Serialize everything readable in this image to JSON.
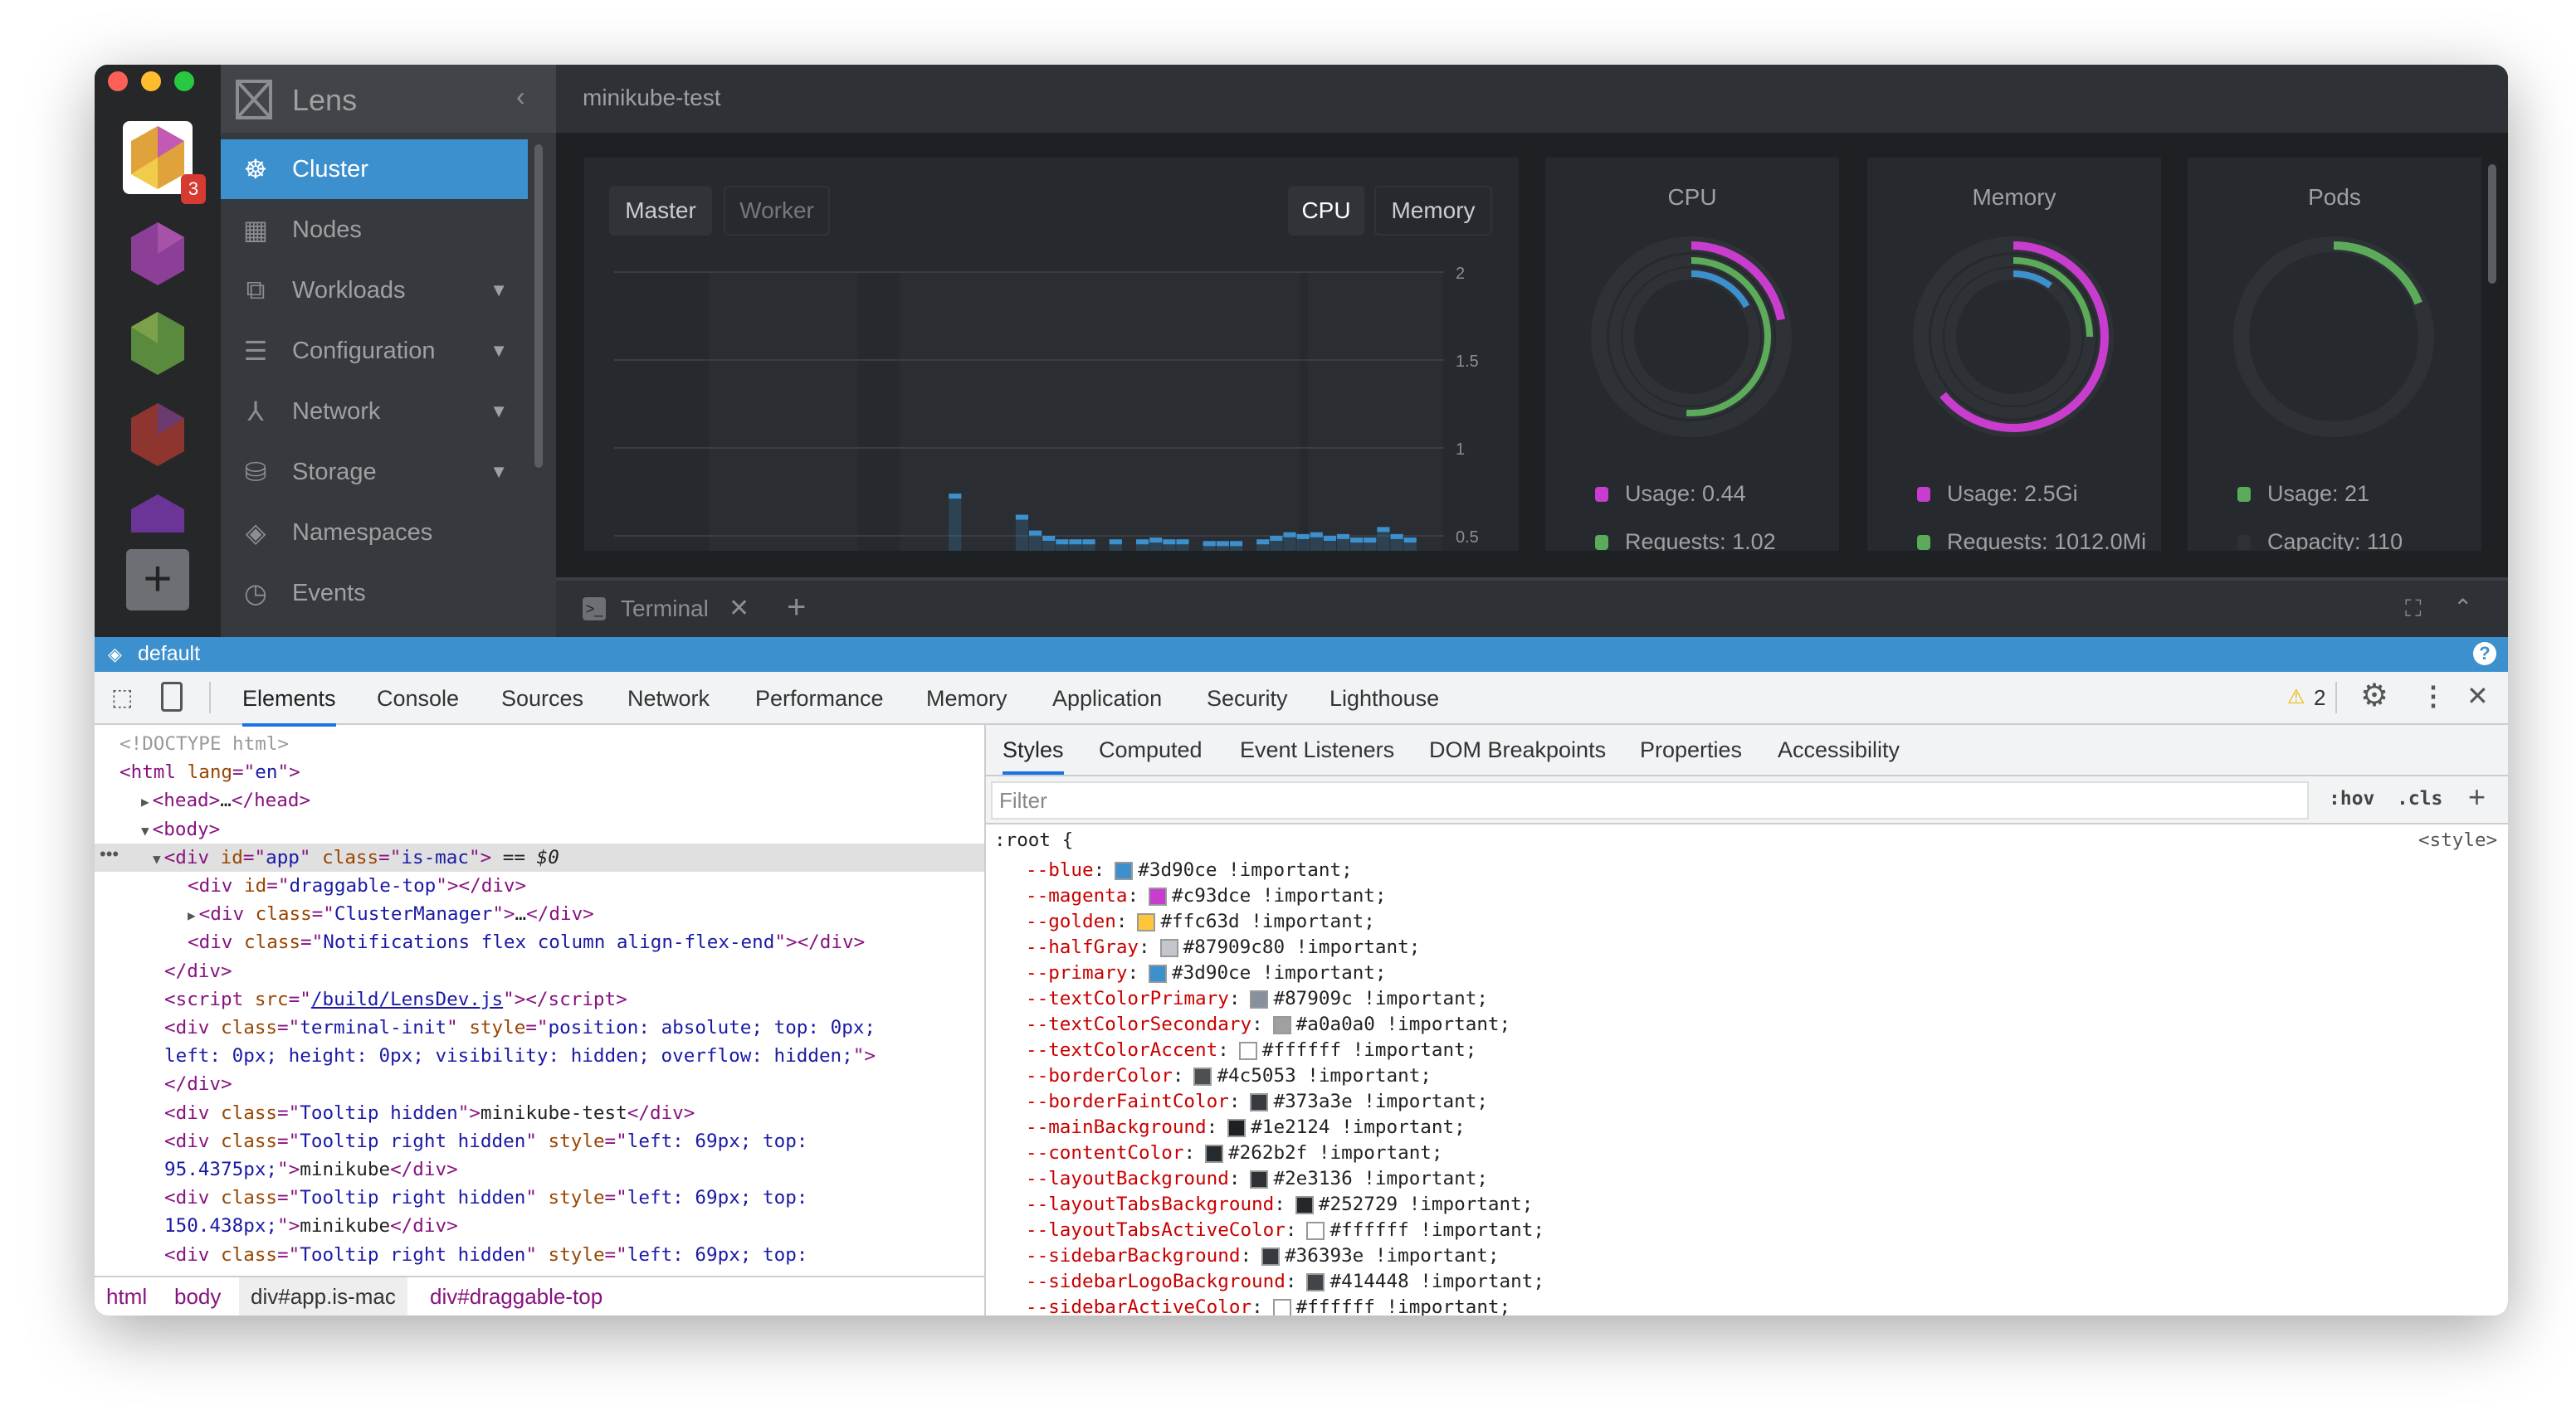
{
  "app": {
    "name": "Lens",
    "cluster_title": "minikube-test",
    "badge_count": "3"
  },
  "sidebar": {
    "items": [
      {
        "label": "Cluster",
        "icon": "helm-wheel-icon",
        "active": true,
        "expandable": false
      },
      {
        "label": "Nodes",
        "icon": "nodes-icon",
        "expandable": false
      },
      {
        "label": "Workloads",
        "icon": "workloads-icon",
        "expandable": true
      },
      {
        "label": "Configuration",
        "icon": "list-icon",
        "expandable": true
      },
      {
        "label": "Network",
        "icon": "network-icon",
        "expandable": true
      },
      {
        "label": "Storage",
        "icon": "database-icon",
        "expandable": true
      },
      {
        "label": "Namespaces",
        "icon": "layers-icon",
        "expandable": false
      },
      {
        "label": "Events",
        "icon": "clock-icon",
        "expandable": false
      }
    ]
  },
  "dashboard": {
    "node_tabs": [
      "Master",
      "Worker"
    ],
    "node_tab_active": "Master",
    "metric_tabs": [
      "CPU",
      "Memory"
    ],
    "metric_tab_active": "CPU",
    "chart_data": {
      "type": "bar",
      "ylim": [
        0,
        2
      ],
      "y_ticks": [
        "2",
        "1.5",
        "1",
        "0.5"
      ],
      "y_tick_values": [
        2,
        1.5,
        1,
        0.5
      ],
      "grid": true,
      "color": "#3d90ce",
      "values": [
        null,
        null,
        null,
        null,
        null,
        null,
        null,
        null,
        null,
        null,
        null,
        null,
        null,
        null,
        null,
        null,
        null,
        null,
        null,
        null,
        null,
        null,
        null,
        null,
        null,
        0.74,
        null,
        null,
        null,
        null,
        0.62,
        0.53,
        0.5,
        0.48,
        0.48,
        0.48,
        null,
        0.48,
        null,
        0.48,
        0.49,
        0.48,
        0.48,
        null,
        0.47,
        0.47,
        0.47,
        null,
        0.48,
        0.5,
        0.52,
        0.51,
        0.52,
        0.5,
        0.51,
        0.49,
        0.49,
        0.55,
        0.51,
        0.49,
        null,
        null
      ]
    },
    "rings": [
      {
        "title": "CPU",
        "arcs": [
          {
            "fraction": 0.22,
            "color": "#c93dce"
          },
          {
            "fraction": 0.51,
            "color": "#5cab5a"
          },
          {
            "fraction": 0.17,
            "color": "#3d90ce"
          }
        ],
        "legend": [
          {
            "label": "Usage: 0.44",
            "color": "#c93dce"
          },
          {
            "label": "Requests: 1.02",
            "color": "#5cab5a"
          }
        ]
      },
      {
        "title": "Memory",
        "arcs": [
          {
            "fraction": 0.64,
            "color": "#c93dce"
          },
          {
            "fraction": 0.25,
            "color": "#5cab5a"
          },
          {
            "fraction": 0.1,
            "color": "#3d90ce"
          }
        ],
        "legend": [
          {
            "label": "Usage: 2.5Gi",
            "color": "#c93dce"
          },
          {
            "label": "Requests: 1012.0Mi",
            "color": "#5cab5a"
          }
        ]
      },
      {
        "title": "Pods",
        "arcs": [
          {
            "fraction": 0.19,
            "color": "#5cab5a"
          }
        ],
        "legend": [
          {
            "label": "Usage: 21",
            "color": "#5cab5a"
          },
          {
            "label": "Capacity: 110",
            "color": "#2e3136"
          }
        ]
      }
    ]
  },
  "terminal": {
    "tab_label": "Terminal"
  },
  "statusbar": {
    "namespace": "default"
  },
  "devtools": {
    "tabs": [
      "Elements",
      "Console",
      "Sources",
      "Network",
      "Performance",
      "Memory",
      "Application",
      "Security",
      "Lighthouse"
    ],
    "active_tab": "Elements",
    "warning_count": "2",
    "elements_lines": [
      {
        "indent": 0,
        "seg": [
          [
            "cmt",
            "<!DOCTYPE html>"
          ]
        ]
      },
      {
        "indent": 0,
        "seg": [
          [
            "tag",
            "<html "
          ],
          [
            "attr",
            "lang"
          ],
          [
            "tag",
            "=\""
          ],
          [
            "val",
            "en"
          ],
          [
            "tag",
            "\">"
          ]
        ]
      },
      {
        "indent": 1,
        "arrow": "▶",
        "seg": [
          [
            "tag",
            "<head>"
          ],
          [
            "text",
            "…"
          ],
          [
            "tag",
            "</head>"
          ]
        ]
      },
      {
        "indent": 1,
        "arrow": "▼",
        "seg": [
          [
            "tag",
            "<body>"
          ]
        ]
      },
      {
        "indent": 2,
        "arrow": "▼",
        "selected": true,
        "seg": [
          [
            "tag",
            "<div "
          ],
          [
            "attr",
            "id"
          ],
          [
            "tag",
            "=\""
          ],
          [
            "val",
            "app"
          ],
          [
            "tag",
            "\" "
          ],
          [
            "attr",
            "class"
          ],
          [
            "tag",
            "=\""
          ],
          [
            "val",
            "is-mac"
          ],
          [
            "tag",
            "\">"
          ],
          [
            "text",
            " == "
          ],
          [
            "sel",
            "$0"
          ]
        ]
      },
      {
        "indent": 3,
        "seg": [
          [
            "tag",
            "<div "
          ],
          [
            "attr",
            "id"
          ],
          [
            "tag",
            "=\""
          ],
          [
            "val",
            "draggable-top"
          ],
          [
            "tag",
            "\"></div>"
          ]
        ]
      },
      {
        "indent": 3,
        "arrow": "▶",
        "seg": [
          [
            "tag",
            "<div "
          ],
          [
            "attr",
            "class"
          ],
          [
            "tag",
            "=\""
          ],
          [
            "val",
            "ClusterManager"
          ],
          [
            "tag",
            "\">"
          ],
          [
            "text",
            "…"
          ],
          [
            "tag",
            "</div>"
          ]
        ]
      },
      {
        "indent": 3,
        "seg": [
          [
            "tag",
            "<div "
          ],
          [
            "attr",
            "class"
          ],
          [
            "tag",
            "=\""
          ],
          [
            "val",
            "Notifications flex column align-flex-end"
          ],
          [
            "tag",
            "\"></div>"
          ]
        ]
      },
      {
        "indent": 2,
        "seg": [
          [
            "tag",
            "</div>"
          ]
        ]
      },
      {
        "indent": 2,
        "seg": [
          [
            "tag",
            "<script "
          ],
          [
            "attr",
            "src"
          ],
          [
            "tag",
            "=\""
          ],
          [
            "link",
            "/build/LensDev.js"
          ],
          [
            "tag",
            "\"></script>"
          ]
        ]
      },
      {
        "indent": 2,
        "seg": [
          [
            "tag",
            "<div "
          ],
          [
            "attr",
            "class"
          ],
          [
            "tag",
            "=\""
          ],
          [
            "val",
            "terminal-init"
          ],
          [
            "tag",
            "\" "
          ],
          [
            "attr",
            "style"
          ],
          [
            "tag",
            "=\""
          ],
          [
            "val",
            "position: absolute; top: 0px;"
          ]
        ]
      },
      {
        "indent": 2,
        "seg": [
          [
            "val",
            "left: 0px; height: 0px; visibility: hidden; overflow: hidden;"
          ],
          [
            "tag",
            "\">"
          ]
        ]
      },
      {
        "indent": 2,
        "seg": [
          [
            "tag",
            "</div>"
          ]
        ]
      },
      {
        "indent": 2,
        "seg": [
          [
            "tag",
            "<div "
          ],
          [
            "attr",
            "class"
          ],
          [
            "tag",
            "=\""
          ],
          [
            "val",
            "Tooltip hidden"
          ],
          [
            "tag",
            "\">"
          ],
          [
            "text",
            "minikube-test"
          ],
          [
            "tag",
            "</div>"
          ]
        ]
      },
      {
        "indent": 2,
        "seg": [
          [
            "tag",
            "<div "
          ],
          [
            "attr",
            "class"
          ],
          [
            "tag",
            "=\""
          ],
          [
            "val",
            "Tooltip right hidden"
          ],
          [
            "tag",
            "\" "
          ],
          [
            "attr",
            "style"
          ],
          [
            "tag",
            "=\""
          ],
          [
            "val",
            "left: 69px; top:"
          ]
        ]
      },
      {
        "indent": 2,
        "seg": [
          [
            "val",
            "95.4375px;"
          ],
          [
            "tag",
            "\">"
          ],
          [
            "text",
            "minikube"
          ],
          [
            "tag",
            "</div>"
          ]
        ]
      },
      {
        "indent": 2,
        "seg": [
          [
            "tag",
            "<div "
          ],
          [
            "attr",
            "class"
          ],
          [
            "tag",
            "=\""
          ],
          [
            "val",
            "Tooltip right hidden"
          ],
          [
            "tag",
            "\" "
          ],
          [
            "attr",
            "style"
          ],
          [
            "tag",
            "=\""
          ],
          [
            "val",
            "left: 69px; top:"
          ]
        ]
      },
      {
        "indent": 2,
        "seg": [
          [
            "val",
            "150.438px;"
          ],
          [
            "tag",
            "\">"
          ],
          [
            "text",
            "minikube"
          ],
          [
            "tag",
            "</div>"
          ]
        ]
      },
      {
        "indent": 2,
        "seg": [
          [
            "tag",
            "<div "
          ],
          [
            "attr",
            "class"
          ],
          [
            "tag",
            "=\""
          ],
          [
            "val",
            "Tooltip right hidden"
          ],
          [
            "tag",
            "\" "
          ],
          [
            "attr",
            "style"
          ],
          [
            "tag",
            "=\""
          ],
          [
            "val",
            "left: 69px; top:"
          ]
        ]
      }
    ],
    "breadcrumbs": [
      "html",
      "body",
      "div#app.is-mac",
      "div#draggable-top"
    ],
    "styles_tabs": [
      "Styles",
      "Computed",
      "Event Listeners",
      "DOM Breakpoints",
      "Properties",
      "Accessibility"
    ],
    "styles_active": "Styles",
    "filter_placeholder": "Filter",
    "hov_label": ":hov",
    "cls_label": ".cls",
    "selector": ":root {",
    "source": "<style>",
    "css_vars": [
      {
        "name": "--blue",
        "value": "#3d90ce !important;",
        "swatch": "#3d90ce"
      },
      {
        "name": "--magenta",
        "value": "#c93dce !important;",
        "swatch": "#c93dce"
      },
      {
        "name": "--golden",
        "value": "#ffc63d !important;",
        "swatch": "#ffc63d"
      },
      {
        "name": "--halfGray",
        "value": "#87909c80 !important;",
        "swatch": "#87909c80"
      },
      {
        "name": "--primary",
        "value": "#3d90ce !important;",
        "swatch": "#3d90ce"
      },
      {
        "name": "--textColorPrimary",
        "value": "#87909c !important;",
        "swatch": "#87909c"
      },
      {
        "name": "--textColorSecondary",
        "value": "#a0a0a0 !important;",
        "swatch": "#a0a0a0"
      },
      {
        "name": "--textColorAccent",
        "value": "#ffffff !important;",
        "swatch": "#ffffff"
      },
      {
        "name": "--borderColor",
        "value": "#4c5053 !important;",
        "swatch": "#4c5053"
      },
      {
        "name": "--borderFaintColor",
        "value": "#373a3e !important;",
        "swatch": "#373a3e"
      },
      {
        "name": "--mainBackground",
        "value": "#1e2124 !important;",
        "swatch": "#1e2124"
      },
      {
        "name": "--contentColor",
        "value": "#262b2f !important;",
        "swatch": "#262b2f"
      },
      {
        "name": "--layoutBackground",
        "value": "#2e3136 !important;",
        "swatch": "#2e3136"
      },
      {
        "name": "--layoutTabsBackground",
        "value": "#252729 !important;",
        "swatch": "#252729"
      },
      {
        "name": "--layoutTabsActiveColor",
        "value": "#ffffff !important;",
        "swatch": "#ffffff"
      },
      {
        "name": "--sidebarBackground",
        "value": "#36393e !important;",
        "swatch": "#36393e"
      },
      {
        "name": "--sidebarLogoBackground",
        "value": "#414448 !important;",
        "swatch": "#414448"
      },
      {
        "name": "--sidebarActiveColor",
        "value": "#ffffff !important;",
        "swatch": "#ffffff"
      }
    ]
  }
}
